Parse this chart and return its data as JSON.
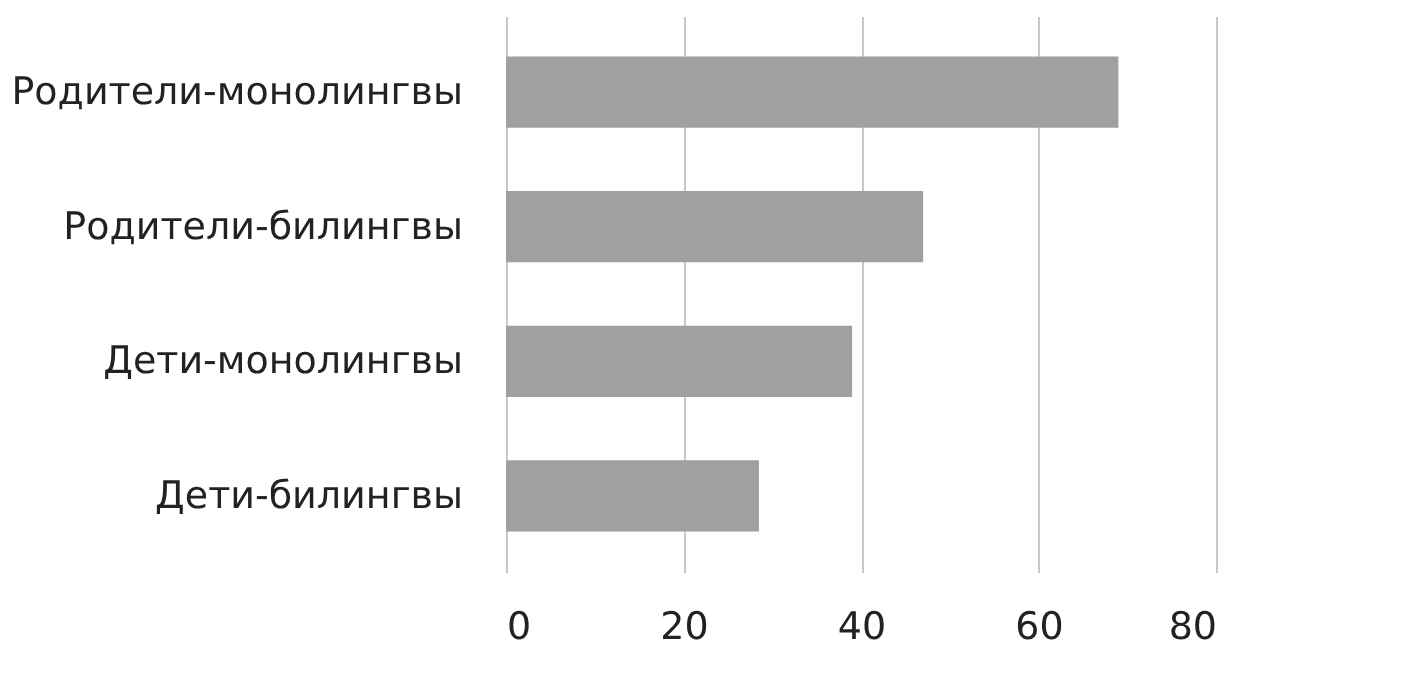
{
  "chart_data": {
    "type": "bar",
    "orientation": "horizontal",
    "categories": [
      "Родители-монолингвы",
      "Родители-билингвы",
      "Дети-монолингвы",
      "Дети-билингвы"
    ],
    "values": [
      69,
      47,
      39,
      28.5
    ],
    "color": "#a0a0a0",
    "xlim": [
      0,
      80
    ],
    "xticks": [
      0,
      20,
      40,
      60,
      80
    ],
    "grid": "x"
  }
}
